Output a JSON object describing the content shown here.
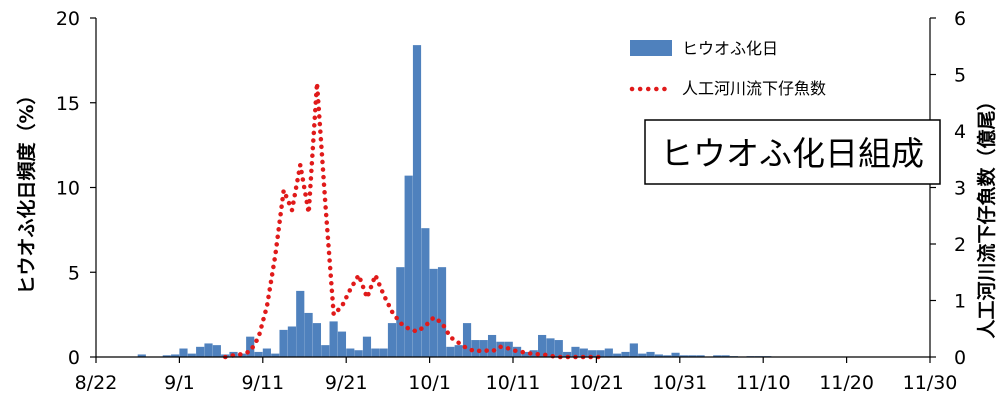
{
  "chart_data": {
    "type": "bar",
    "title": "",
    "annotation_box": "ヒウオふ化日組成",
    "xlabel": "",
    "ylabel_left": "ヒウオふ化日頻度（%）",
    "ylabel_right": "人工河川流下仔魚数（億尾）",
    "x_tick_labels": [
      "8/22",
      "9/1",
      "9/11",
      "9/21",
      "10/1",
      "10/11",
      "10/21",
      "10/31",
      "11/10",
      "11/20",
      "11/30"
    ],
    "y_left_ticks": [
      "0",
      "5",
      "10",
      "15",
      "20"
    ],
    "y_right_ticks": [
      "0",
      "1",
      "2",
      "3",
      "4",
      "5",
      "6"
    ],
    "ylim_left": [
      0,
      20
    ],
    "ylim_right": [
      0,
      6
    ],
    "x_day_range": [
      0,
      100
    ],
    "legend_position": "top-right",
    "colors": {
      "bars": "#4f81bd",
      "line": "#e01a1a"
    },
    "series": [
      {
        "name": "ヒウオふ化日",
        "kind": "bar",
        "axis": "left",
        "x": [
          5,
          8,
          9,
          10,
          11,
          12,
          13,
          14,
          15,
          16,
          17,
          18,
          19,
          20,
          21,
          22,
          23,
          24,
          25,
          26,
          27,
          28,
          29,
          30,
          31,
          32,
          33,
          34,
          35,
          36,
          37,
          38,
          39,
          40,
          41,
          42,
          43,
          44,
          45,
          46,
          47,
          48,
          49,
          50,
          51,
          52,
          53,
          54,
          55,
          56,
          57,
          58,
          59,
          60,
          61,
          62,
          63,
          64,
          65,
          66,
          67,
          68,
          69,
          70,
          71,
          72,
          74,
          75,
          76,
          78,
          79,
          80
        ],
        "values": [
          0.15,
          0.1,
          0.15,
          0.5,
          0.2,
          0.6,
          0.8,
          0.7,
          0.15,
          0.3,
          0.2,
          1.2,
          0.3,
          0.5,
          0.2,
          1.6,
          1.8,
          3.9,
          2.6,
          2.0,
          0.7,
          2.1,
          1.5,
          0.5,
          0.4,
          1.2,
          0.5,
          0.5,
          2.0,
          5.3,
          10.7,
          18.4,
          7.6,
          5.2,
          5.3,
          0.6,
          0.7,
          2.0,
          1.0,
          1.0,
          1.3,
          0.9,
          0.9,
          0.6,
          0.3,
          0.4,
          1.3,
          1.1,
          1.0,
          0.3,
          0.6,
          0.5,
          0.4,
          0.4,
          0.5,
          0.2,
          0.3,
          0.8,
          0.2,
          0.3,
          0.15,
          0.1,
          0.25,
          0.1,
          0.1,
          0.1,
          0.1,
          0.1,
          0.05,
          0.05,
          0.05,
          0.05
        ]
      },
      {
        "name": "人工河川流下仔魚数",
        "kind": "line",
        "axis": "right",
        "x": [
          15,
          16,
          17,
          18,
          19,
          20,
          21,
          22,
          23,
          24,
          25,
          26,
          27,
          28,
          29,
          30,
          31,
          32,
          33,
          34,
          35,
          36,
          37,
          38,
          39,
          40,
          41,
          42,
          43,
          44,
          45,
          46,
          47,
          48,
          49,
          50,
          51,
          52,
          53,
          54,
          55,
          56,
          57,
          58,
          59,
          60
        ],
        "values": [
          0.0,
          0.03,
          0.05,
          0.1,
          0.35,
          0.9,
          1.8,
          2.95,
          2.6,
          3.4,
          2.55,
          4.85,
          2.7,
          0.75,
          0.9,
          1.2,
          1.45,
          1.05,
          1.45,
          1.1,
          0.8,
          0.6,
          0.5,
          0.45,
          0.55,
          0.7,
          0.6,
          0.35,
          0.25,
          0.15,
          0.1,
          0.12,
          0.1,
          0.18,
          0.15,
          0.1,
          0.08,
          0.05,
          0.05,
          0.02,
          0.0,
          0.0,
          0.0,
          0.0,
          0.0,
          0.0
        ]
      }
    ]
  }
}
